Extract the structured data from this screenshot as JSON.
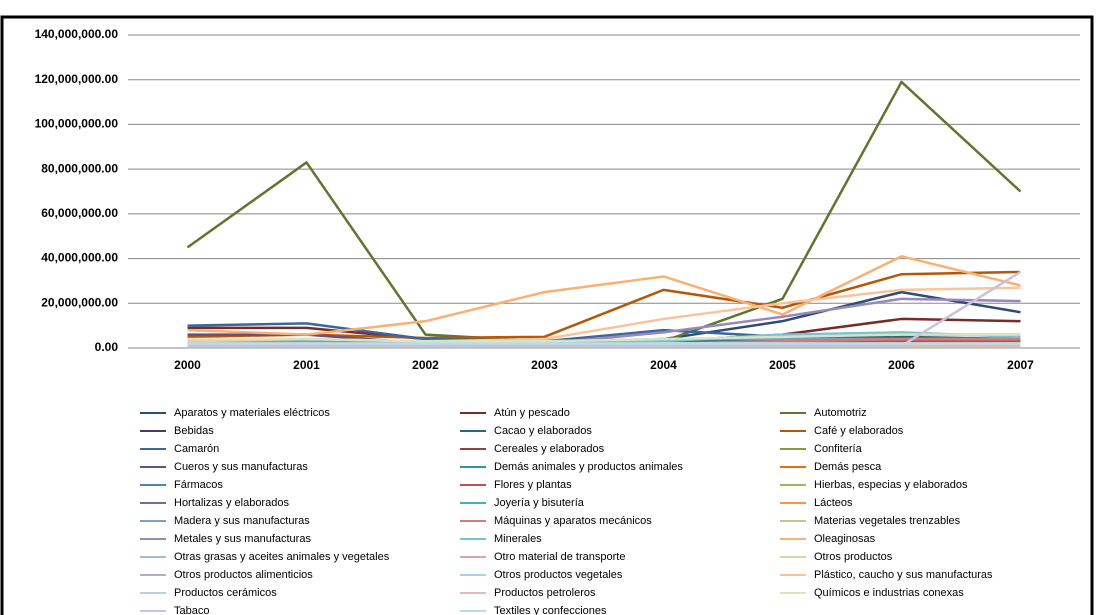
{
  "chart_data": {
    "type": "line",
    "categories": [
      "2000",
      "2001",
      "2002",
      "2003",
      "2004",
      "2005",
      "2006",
      "2007"
    ],
    "ylim": [
      0,
      140000000
    ],
    "yticks": [
      {
        "value": 0,
        "label": "0.00"
      },
      {
        "value": 20000000,
        "label": "20,000,000.00"
      },
      {
        "value": 40000000,
        "label": "40,000,000.00"
      },
      {
        "value": 60000000,
        "label": "60,000,000.00"
      },
      {
        "value": 80000000,
        "label": "80,000,000.00"
      },
      {
        "value": 100000000,
        "label": "100,000,000.00"
      },
      {
        "value": 120000000,
        "label": "120,000,000.00"
      },
      {
        "value": 140000000,
        "label": "140,000,000.00"
      }
    ],
    "grid": true,
    "series": [
      {
        "name": "Aparatos y materiales eléctricos",
        "color": "#2c4d75",
        "values": [
          2000000,
          2000000,
          2000000,
          2000000,
          4000000,
          12000000,
          25000000,
          16000000
        ]
      },
      {
        "name": "Atún y pescado",
        "color": "#772c2a",
        "values": [
          9000000,
          9000000,
          4000000,
          3000000,
          3000000,
          6000000,
          13000000,
          12000000
        ]
      },
      {
        "name": "Automotriz",
        "color": "#5f7530",
        "values": [
          45000000,
          83000000,
          6000000,
          3000000,
          3000000,
          22000000,
          119000000,
          70000000
        ]
      },
      {
        "name": "Bebidas",
        "color": "#4d3b62",
        "values": [
          1000000,
          1000000,
          1000000,
          1000000,
          2000000,
          2000000,
          3000000,
          3000000
        ]
      },
      {
        "name": "Cacao y elaborados",
        "color": "#276a7c",
        "values": [
          3000000,
          3000000,
          2000000,
          2000000,
          3000000,
          4000000,
          5000000,
          4000000
        ]
      },
      {
        "name": "Café y elaborados",
        "color": "#b65708",
        "values": [
          5000000,
          6000000,
          4500000,
          5000000,
          26000000,
          18000000,
          33000000,
          34000000
        ]
      },
      {
        "name": "Camarón",
        "color": "#3a679c",
        "values": [
          10000000,
          11000000,
          4000000,
          3000000,
          8000000,
          5000000,
          6000000,
          6000000
        ]
      },
      {
        "name": "Cereales y elaborados",
        "color": "#9f3b38",
        "values": [
          1000000,
          1000000,
          1000000,
          1000000,
          1000000,
          1000000,
          1000000,
          1000000
        ]
      },
      {
        "name": "Confitería",
        "color": "#7f9c40",
        "values": [
          1000000,
          1000000,
          1000000,
          1000000,
          1000000,
          2000000,
          2000000,
          2000000
        ]
      },
      {
        "name": "Cueros y sus manufacturas",
        "color": "#664f83",
        "values": [
          6000000,
          6000000,
          2000000,
          1000000,
          1000000,
          1000000,
          1000000,
          1000000
        ]
      },
      {
        "name": "Demás animales y productos animales",
        "color": "#3490a7",
        "values": [
          1000000,
          1000000,
          1000000,
          1000000,
          1000000,
          1000000,
          1000000,
          1000000
        ]
      },
      {
        "name": "Demás pesca",
        "color": "#e46c0a",
        "values": [
          2000000,
          2000000,
          1000000,
          1000000,
          2000000,
          2000000,
          2000000,
          2000000
        ]
      },
      {
        "name": "Fármacos",
        "color": "#4f81bd",
        "values": [
          1000000,
          1000000,
          1000000,
          1000000,
          2000000,
          3000000,
          3000000,
          2000000
        ]
      },
      {
        "name": "Flores y plantas",
        "color": "#c0504d",
        "values": [
          1000000,
          1000000,
          1000000,
          1000000,
          2000000,
          2000000,
          3000000,
          3000000
        ]
      },
      {
        "name": "Hierbas, especias y elaborados",
        "color": "#9bbb59",
        "values": [
          500000,
          500000,
          500000,
          500000,
          500000,
          500000,
          500000,
          500000
        ]
      },
      {
        "name": "Hortalizas y elaborados",
        "color": "#8064a2",
        "values": [
          1000000,
          1000000,
          1000000,
          1000000,
          1000000,
          1000000,
          1000000,
          1000000
        ]
      },
      {
        "name": "Joyería y bisutería",
        "color": "#4bacc6",
        "values": [
          500000,
          500000,
          500000,
          500000,
          500000,
          500000,
          500000,
          500000
        ]
      },
      {
        "name": "Lácteos",
        "color": "#f79646",
        "values": [
          1000000,
          1000000,
          1000000,
          1000000,
          1000000,
          1000000,
          1000000,
          1000000
        ]
      },
      {
        "name": "Madera y sus manufacturas",
        "color": "#7c9cc9",
        "values": [
          3000000,
          3000000,
          3000000,
          3000000,
          4000000,
          4000000,
          4000000,
          4000000
        ]
      },
      {
        "name": "Máquinas y aparatos mecánicos",
        "color": "#d27b79",
        "values": [
          2000000,
          2000000,
          2000000,
          2000000,
          2000000,
          3000000,
          4000000,
          4000000
        ]
      },
      {
        "name": "Materias vegetales trenzables",
        "color": "#b6cc8a",
        "values": [
          500000,
          500000,
          500000,
          500000,
          500000,
          500000,
          500000,
          500000
        ]
      },
      {
        "name": "Metales y sus manufacturas",
        "color": "#9a88b9",
        "values": [
          1000000,
          1000000,
          1000000,
          2000000,
          7000000,
          14000000,
          22000000,
          21000000
        ]
      },
      {
        "name": "Minerales",
        "color": "#76c2d6",
        "values": [
          2000000,
          2000000,
          2000000,
          2000000,
          3000000,
          6000000,
          7000000,
          5000000
        ]
      },
      {
        "name": "Oleaginosas",
        "color": "#f9b074",
        "values": [
          8000000,
          6000000,
          12000000,
          25000000,
          32000000,
          15000000,
          41000000,
          28000000
        ]
      },
      {
        "name": "Otras grasas y aceites animales y vegetales",
        "color": "#a6b9dd",
        "values": [
          1000000,
          1000000,
          1000000,
          1000000,
          1000000,
          1000000,
          1000000,
          1000000
        ]
      },
      {
        "name": "Otro material de transporte",
        "color": "#dca4a3",
        "values": [
          1000000,
          1000000,
          1000000,
          1000000,
          1000000,
          1000000,
          1000000,
          1000000
        ]
      },
      {
        "name": "Otros productos",
        "color": "#cddcb0",
        "values": [
          2000000,
          2000000,
          1000000,
          1000000,
          2000000,
          2000000,
          2000000,
          2000000
        ]
      },
      {
        "name": "Otros productos alimenticios",
        "color": "#b7acc9",
        "values": [
          1000000,
          1000000,
          1000000,
          1000000,
          1000000,
          1000000,
          1000000,
          1000000
        ]
      },
      {
        "name": "Otros productos vegetales",
        "color": "#a5d5e3",
        "values": [
          1000000,
          1000000,
          1000000,
          1000000,
          1000000,
          1000000,
          1000000,
          1000000
        ]
      },
      {
        "name": "Plástico, caucho y sus manufacturas",
        "color": "#fbc39b",
        "values": [
          3000000,
          4000000,
          3000000,
          4000000,
          13000000,
          20000000,
          26000000,
          27000000
        ]
      },
      {
        "name": "Productos cerámicos",
        "color": "#b9cde5",
        "values": [
          1000000,
          1000000,
          1000000,
          1000000,
          1000000,
          1000000,
          1000000,
          1000000
        ]
      },
      {
        "name": "Productos petroleros",
        "color": "#e6b9b8",
        "values": [
          1000000,
          1000000,
          1000000,
          1000000,
          1000000,
          1000000,
          1000000,
          1000000
        ]
      },
      {
        "name": "Químicos e industrias conexas",
        "color": "#d7e4bd",
        "values": [
          4000000,
          4000000,
          3000000,
          3000000,
          4000000,
          5000000,
          6000000,
          6000000
        ]
      },
      {
        "name": "Tabaco",
        "color": "#ccc1da",
        "values": [
          1000000,
          1000000,
          1000000,
          1000000,
          1000000,
          1000000,
          1000000,
          34000000
        ]
      },
      {
        "name": "Textiles y confecciones",
        "color": "#b7dee8",
        "values": [
          2000000,
          2000000,
          2000000,
          2000000,
          2000000,
          2000000,
          2000000,
          2000000
        ]
      }
    ]
  }
}
